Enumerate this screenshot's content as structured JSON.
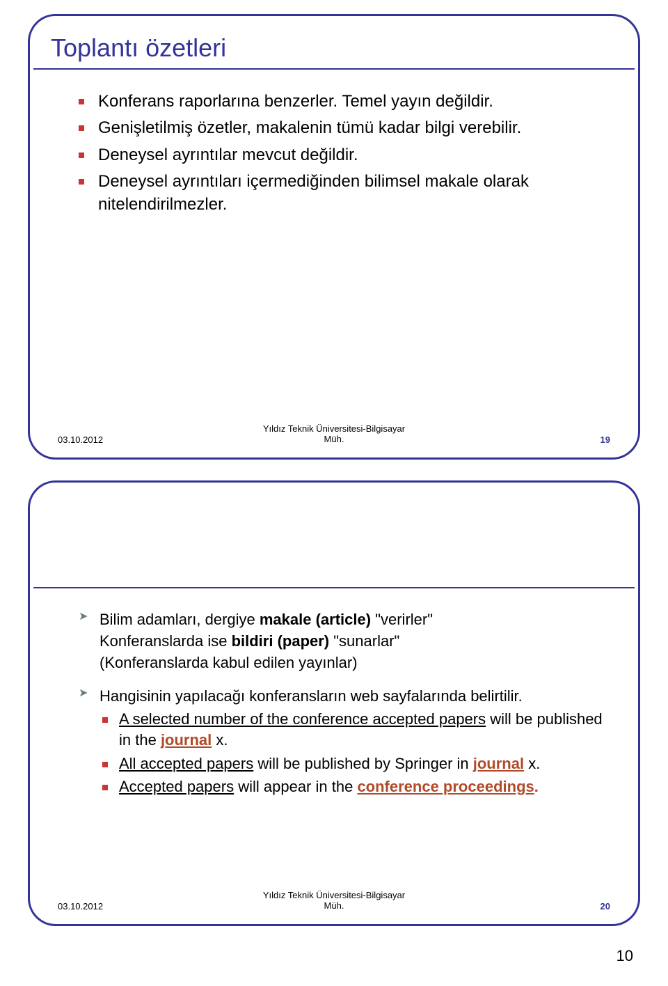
{
  "slide1": {
    "title": "Toplantı özetleri",
    "bullets": [
      "Konferans raporlarına benzerler. Temel yayın değildir.",
      "Genişletilmiş özetler, makalenin tümü kadar bilgi verebilir.",
      "Deneysel ayrıntılar mevcut değildir.",
      "Deneysel ayrıntıları içermediğinden bilimsel makale olarak nitelendirilmezler."
    ],
    "footer": {
      "date": "03.10.2012",
      "src_l1": "Yıldız Teknik Üniversitesi-Bilgisayar",
      "src_l2": "Müh.",
      "num": "19"
    }
  },
  "slide2": {
    "arrow1_a": "Bilim adamları, dergiye ",
    "arrow1_b": "makale (article)",
    "arrow1_c": " \"verirler\"",
    "arrow1_d": "Konferanslarda ise ",
    "arrow1_e": "bildiri (paper)",
    "arrow1_f": " \"sunarlar\"",
    "arrow1_g": "(Konferanslarda kabul edilen yayınlar)",
    "arrow2": "Hangisinin yapılacağı konferansların web sayfalarında belirtilir.",
    "sub1_a": "A selected number of the conference accepted papers",
    "sub1_b": " will be published in the ",
    "sub1_c": "journal",
    "sub1_d": " x.",
    "sub2_a": "All accepted papers",
    "sub2_b": " will be published by Springer in ",
    "sub2_c": "journal",
    "sub2_d": " x.",
    "sub3_a": "Accepted papers",
    "sub3_b": " will appear in the ",
    "sub3_c": "conference proceedings",
    "sub3_d": ".",
    "footer": {
      "date": "03.10.2012",
      "src_l1": "Yıldız Teknik Üniversitesi-Bilgisayar",
      "src_l2": "Müh.",
      "num": "20"
    }
  },
  "page_number": "10",
  "colors": {
    "frame": "#333399",
    "title": "#333399",
    "bullet": "#cc3333",
    "arrow": "#6a7a7a",
    "brand": "#b04a2a",
    "bg": "#ffffff"
  }
}
